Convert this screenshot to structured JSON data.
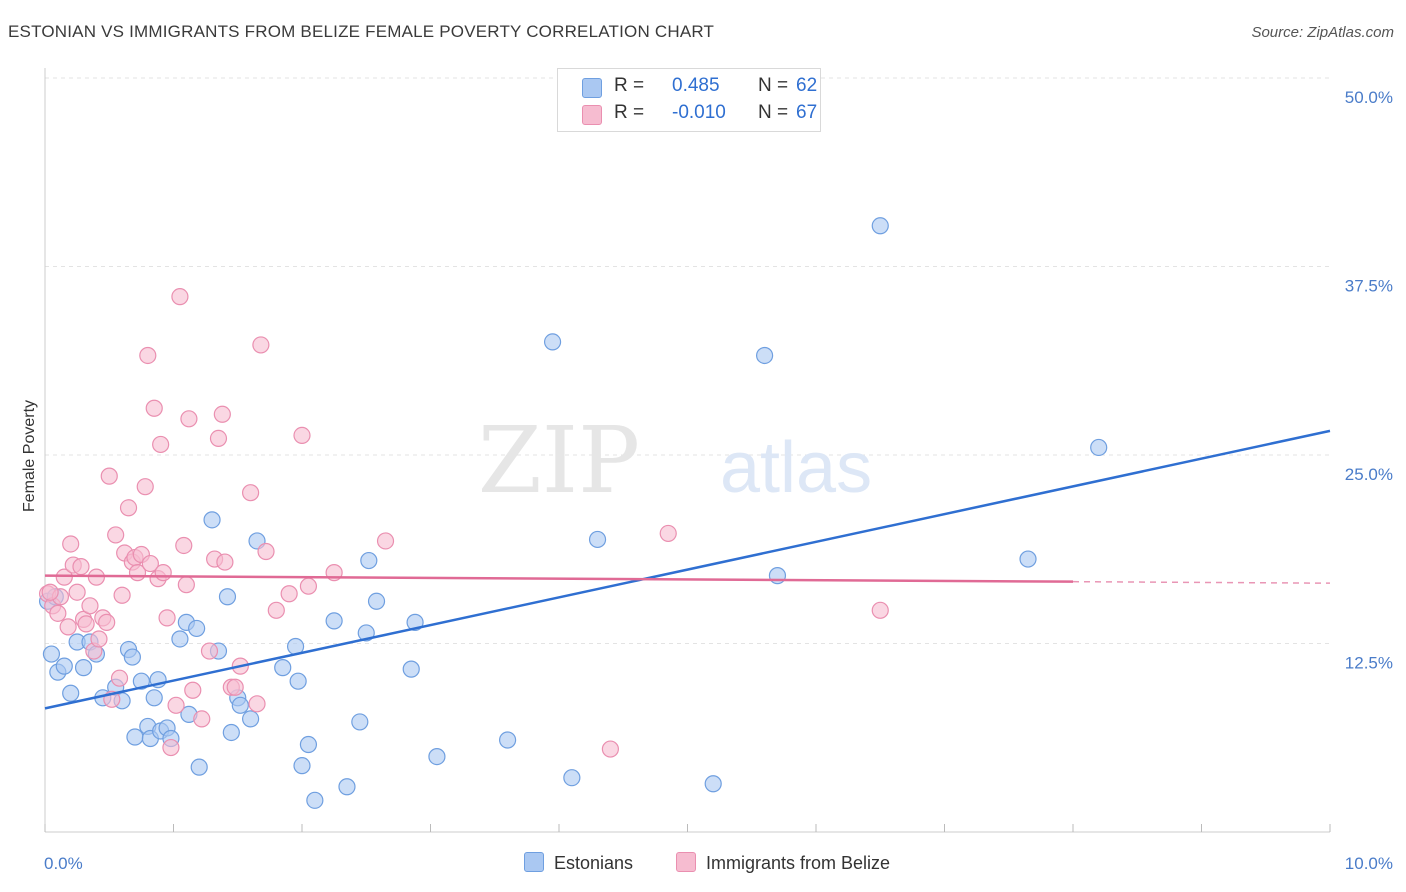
{
  "header": {
    "title": "ESTONIAN VS IMMIGRANTS FROM BELIZE FEMALE POVERTY CORRELATION CHART",
    "source": "Source: ZipAtlas.com"
  },
  "legend": {
    "rows": [
      {
        "r_label": "R =",
        "r_value": "0.485",
        "n_label": "N =",
        "n_value": "62"
      },
      {
        "r_label": "R =",
        "r_value": "-0.010",
        "n_label": "N =",
        "n_value": "67"
      }
    ]
  },
  "bottom_legend": {
    "estonians": "Estonians",
    "belize": "Immigrants from Belize"
  },
  "watermark": {
    "zip": "ZIP",
    "atlas": "atlas"
  },
  "colors": {
    "estonians_fill": "#aac8f2",
    "estonians_stroke": "#6f9fe0",
    "estonians_line": "#2f6fd1",
    "belize_fill": "#f6bcd0",
    "belize_stroke": "#ea8fb0",
    "belize_line": "#e06a95",
    "tick_text": "#4a7cc9",
    "grid": "#e3e3e3"
  },
  "chart_data": {
    "type": "scatter",
    "xlabel": "",
    "ylabel": "Female Poverty",
    "xlim": [
      0,
      10
    ],
    "ylim": [
      0,
      50
    ],
    "x_tick_labels": [
      {
        "value": 0,
        "label": "0.0%"
      },
      {
        "value": 10,
        "label": "10.0%"
      }
    ],
    "y_tick_labels": [
      {
        "value": 12.5,
        "label": "12.5%"
      },
      {
        "value": 25,
        "label": "25.0%"
      },
      {
        "value": 37.5,
        "label": "37.5%"
      },
      {
        "value": 50,
        "label": "50.0%"
      }
    ],
    "grid": true,
    "legend_position": "top-center",
    "series": [
      {
        "name": "Estonians",
        "trend": {
          "x": [
            0,
            10
          ],
          "y": [
            8.2,
            26.6
          ],
          "dashed_from": null
        },
        "points": [
          [
            0.05,
            11.8
          ],
          [
            0.1,
            10.6
          ],
          [
            0.15,
            11.0
          ],
          [
            0.2,
            9.2
          ],
          [
            0.25,
            12.6
          ],
          [
            0.3,
            10.9
          ],
          [
            0.35,
            12.6
          ],
          [
            0.4,
            11.8
          ],
          [
            0.45,
            8.9
          ],
          [
            0.55,
            9.6
          ],
          [
            0.6,
            8.7
          ],
          [
            0.65,
            12.1
          ],
          [
            0.68,
            11.6
          ],
          [
            0.7,
            6.3
          ],
          [
            0.75,
            10.0
          ],
          [
            0.8,
            7.0
          ],
          [
            0.82,
            6.2
          ],
          [
            0.85,
            8.9
          ],
          [
            0.88,
            10.1
          ],
          [
            0.9,
            6.7
          ],
          [
            0.95,
            6.9
          ],
          [
            0.98,
            6.2
          ],
          [
            1.05,
            12.8
          ],
          [
            1.1,
            13.9
          ],
          [
            1.12,
            7.8
          ],
          [
            1.18,
            13.5
          ],
          [
            1.2,
            4.3
          ],
          [
            1.3,
            20.7
          ],
          [
            1.35,
            12.0
          ],
          [
            1.42,
            15.6
          ],
          [
            1.45,
            6.6
          ],
          [
            1.5,
            8.9
          ],
          [
            1.52,
            8.4
          ],
          [
            1.6,
            7.5
          ],
          [
            1.65,
            19.3
          ],
          [
            1.85,
            10.9
          ],
          [
            1.95,
            12.3
          ],
          [
            1.97,
            10.0
          ],
          [
            2.0,
            4.4
          ],
          [
            2.05,
            5.8
          ],
          [
            2.1,
            2.1
          ],
          [
            2.25,
            14.0
          ],
          [
            2.35,
            3.0
          ],
          [
            2.45,
            7.3
          ],
          [
            2.5,
            13.2
          ],
          [
            2.52,
            18.0
          ],
          [
            2.58,
            15.3
          ],
          [
            2.85,
            10.8
          ],
          [
            2.88,
            13.9
          ],
          [
            3.05,
            5.0
          ],
          [
            3.6,
            6.1
          ],
          [
            3.95,
            32.5
          ],
          [
            4.1,
            3.6
          ],
          [
            4.3,
            19.4
          ],
          [
            5.2,
            3.2
          ],
          [
            5.6,
            31.6
          ],
          [
            5.7,
            17.0
          ],
          [
            6.5,
            40.2
          ],
          [
            7.65,
            18.1
          ],
          [
            8.2,
            25.5
          ],
          [
            0.02,
            15.3
          ],
          [
            0.08,
            15.6
          ]
        ]
      },
      {
        "name": "Immigrants from Belize",
        "trend": {
          "x": [
            0,
            8,
            10
          ],
          "y": [
            17.0,
            16.6,
            16.5
          ],
          "dashed_from": 8
        },
        "points": [
          [
            0.02,
            15.8
          ],
          [
            0.06,
            15.0
          ],
          [
            0.1,
            14.5
          ],
          [
            0.12,
            15.6
          ],
          [
            0.15,
            16.9
          ],
          [
            0.18,
            13.6
          ],
          [
            0.2,
            19.1
          ],
          [
            0.22,
            17.7
          ],
          [
            0.25,
            15.9
          ],
          [
            0.28,
            17.6
          ],
          [
            0.3,
            14.1
          ],
          [
            0.32,
            13.8
          ],
          [
            0.35,
            15.0
          ],
          [
            0.38,
            12.0
          ],
          [
            0.4,
            16.9
          ],
          [
            0.42,
            12.8
          ],
          [
            0.45,
            14.2
          ],
          [
            0.48,
            13.9
          ],
          [
            0.5,
            23.6
          ],
          [
            0.52,
            8.8
          ],
          [
            0.55,
            19.7
          ],
          [
            0.58,
            10.2
          ],
          [
            0.6,
            15.7
          ],
          [
            0.62,
            18.5
          ],
          [
            0.65,
            21.5
          ],
          [
            0.68,
            17.9
          ],
          [
            0.7,
            18.2
          ],
          [
            0.72,
            17.2
          ],
          [
            0.75,
            18.4
          ],
          [
            0.78,
            22.9
          ],
          [
            0.8,
            31.6
          ],
          [
            0.82,
            17.8
          ],
          [
            0.85,
            28.1
          ],
          [
            0.88,
            16.8
          ],
          [
            0.9,
            25.7
          ],
          [
            0.92,
            17.2
          ],
          [
            0.95,
            14.2
          ],
          [
            0.98,
            5.6
          ],
          [
            1.02,
            8.4
          ],
          [
            1.05,
            35.5
          ],
          [
            1.08,
            19.0
          ],
          [
            1.1,
            16.4
          ],
          [
            1.12,
            27.4
          ],
          [
            1.15,
            9.4
          ],
          [
            1.22,
            7.5
          ],
          [
            1.28,
            12.0
          ],
          [
            1.32,
            18.1
          ],
          [
            1.35,
            26.1
          ],
          [
            1.38,
            27.7
          ],
          [
            1.4,
            17.9
          ],
          [
            1.45,
            9.6
          ],
          [
            1.48,
            9.6
          ],
          [
            1.52,
            11.0
          ],
          [
            1.6,
            22.5
          ],
          [
            1.65,
            8.5
          ],
          [
            1.68,
            32.3
          ],
          [
            1.72,
            18.6
          ],
          [
            1.8,
            14.7
          ],
          [
            1.9,
            15.8
          ],
          [
            2.0,
            26.3
          ],
          [
            2.05,
            16.3
          ],
          [
            2.25,
            17.2
          ],
          [
            2.65,
            19.3
          ],
          [
            4.4,
            5.5
          ],
          [
            4.85,
            19.8
          ],
          [
            6.5,
            14.7
          ],
          [
            0.04,
            15.9
          ]
        ]
      }
    ]
  }
}
